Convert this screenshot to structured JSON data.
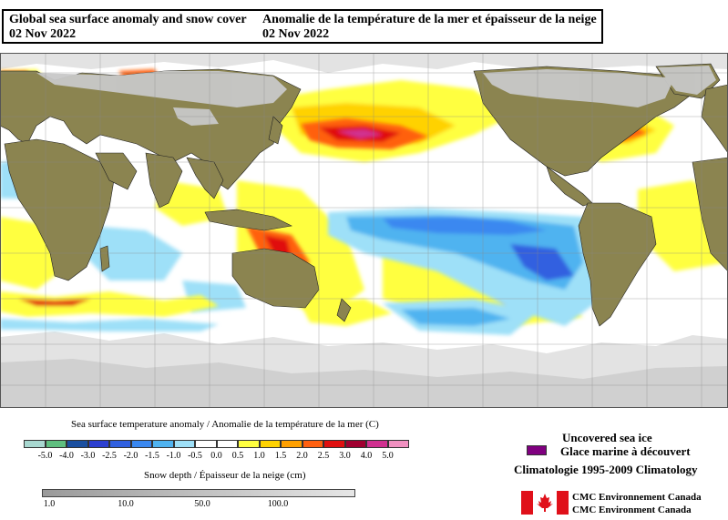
{
  "title": {
    "en_line1": "Global sea surface anomaly and snow cover",
    "en_date": "02 Nov 2022",
    "fr_line1": "Anomalie de la température de la mer et épaisseur de la neige",
    "fr_date": "02 Nov 2022"
  },
  "sst_legend": {
    "label": "Sea surface temperature anomaly / Anomalie de la température de la mer (C)",
    "ticks": [
      "-5.0",
      "-4.0",
      "-3.0",
      "-2.5",
      "-2.0",
      "-1.5",
      "-1.0",
      "-0.5",
      "0.0",
      "0.5",
      "1.0",
      "1.5",
      "2.0",
      "2.5",
      "3.0",
      "4.0",
      "5.0"
    ],
    "colors": [
      "#a8d8d0",
      "#5fbf7f",
      "#1a4fa0",
      "#2c3fd0",
      "#3060e0",
      "#3a88f0",
      "#4fb3f0",
      "#9ee0f8",
      "#ffffff",
      "#ffffff",
      "#ffff40",
      "#ffd200",
      "#ffa000",
      "#ff6010",
      "#e01010",
      "#a00030",
      "#d03090",
      "#f090c0"
    ]
  },
  "snow_legend": {
    "label": "Snow depth / Épaisseur de la neige (cm)",
    "ticks": [
      "1.0",
      "10.0",
      "50.0",
      "100.0"
    ]
  },
  "ice_legend": {
    "en": "Uncovered sea ice",
    "fr": "Glace marine à découvert",
    "color": "#800080",
    "climatology": "Climatologie 1995-2009 Climatology"
  },
  "credit": {
    "line1": "CMC Environnement Canada",
    "line2": "CMC Environment Canada"
  },
  "colors": {
    "land": "#8b8450",
    "snow": "#c8c8c8",
    "ice": "#e3e3e3",
    "grid": "#888888",
    "flag_red": "#e0101a"
  }
}
